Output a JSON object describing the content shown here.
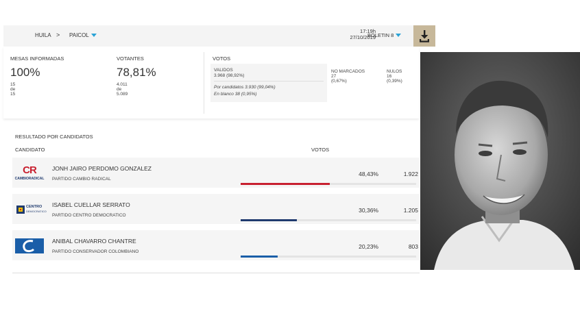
{
  "header": {
    "breadcrumb_1": "HUILA",
    "breadcrumb_sep": ">",
    "breadcrumb_2": "PAICOL",
    "time": "17:19h",
    "date": "27/10/2019",
    "boletin": "BOLETIN 8"
  },
  "summary": {
    "mesas_label": "MESAS INFORMADAS",
    "mesas_pct": "100%",
    "mesas_a": "15",
    "mesas_de": "de",
    "mesas_b": "15",
    "votantes_label": "VOTANTES",
    "votantes_pct": "78,81%",
    "votantes_a": "4.011",
    "votantes_de": "de",
    "votantes_b": "5.089",
    "votos_label": "VOTOS",
    "validos_label": "VALIDOS",
    "validos_value": "3.968 (98,92%)",
    "por_candidatos": "Por candidatos  3.930 (99,04%)",
    "en_blanco": "En blanco  38 (0,95%)",
    "no_marcados_label": "NO MARCADOS",
    "no_marcados_value": "27",
    "no_marcados_pct": "(0,67%)",
    "nulos_label": "NULOS",
    "nulos_value": "16",
    "nulos_pct": "(0,39%)"
  },
  "results": {
    "title": "RESULTADO POR CANDIDATOS",
    "col_candidate": "CANDIDATO",
    "col_votes": "VOTOS",
    "candidates": [
      {
        "name": "JONH JAIRO PERDOMO GONZALEZ",
        "party": "PARTIDO CAMBIO RADICAL",
        "pct": "48,43%",
        "votes": "1.922",
        "share": 0.4843,
        "color": "#c8202f",
        "logo": "cambio-radical-logo",
        "logo_text_a": "CR",
        "logo_text_b": "CAMBIORADICAL"
      },
      {
        "name": "ISABEL CUELLAR SERRATO",
        "party": "PARTIDO CENTRO DEMOCRATICO",
        "pct": "30,36%",
        "votes": "1.205",
        "share": 0.3036,
        "color": "#1f3a6e",
        "logo": "centro-democratico-logo",
        "logo_text_a": "CENTRO",
        "logo_text_b": "DEMOCRATICO"
      },
      {
        "name": "ANIBAL CHAVARRO CHANTRE",
        "party": "PARTIDO CONSERVADOR COLOMBIANO",
        "pct": "20,23%",
        "votes": "803",
        "share": 0.2023,
        "color": "#1a5ea8",
        "logo": "conservador-logo"
      }
    ]
  },
  "colors": {
    "accent": "#2aa3d6",
    "download_bg": "#c7b89a"
  }
}
